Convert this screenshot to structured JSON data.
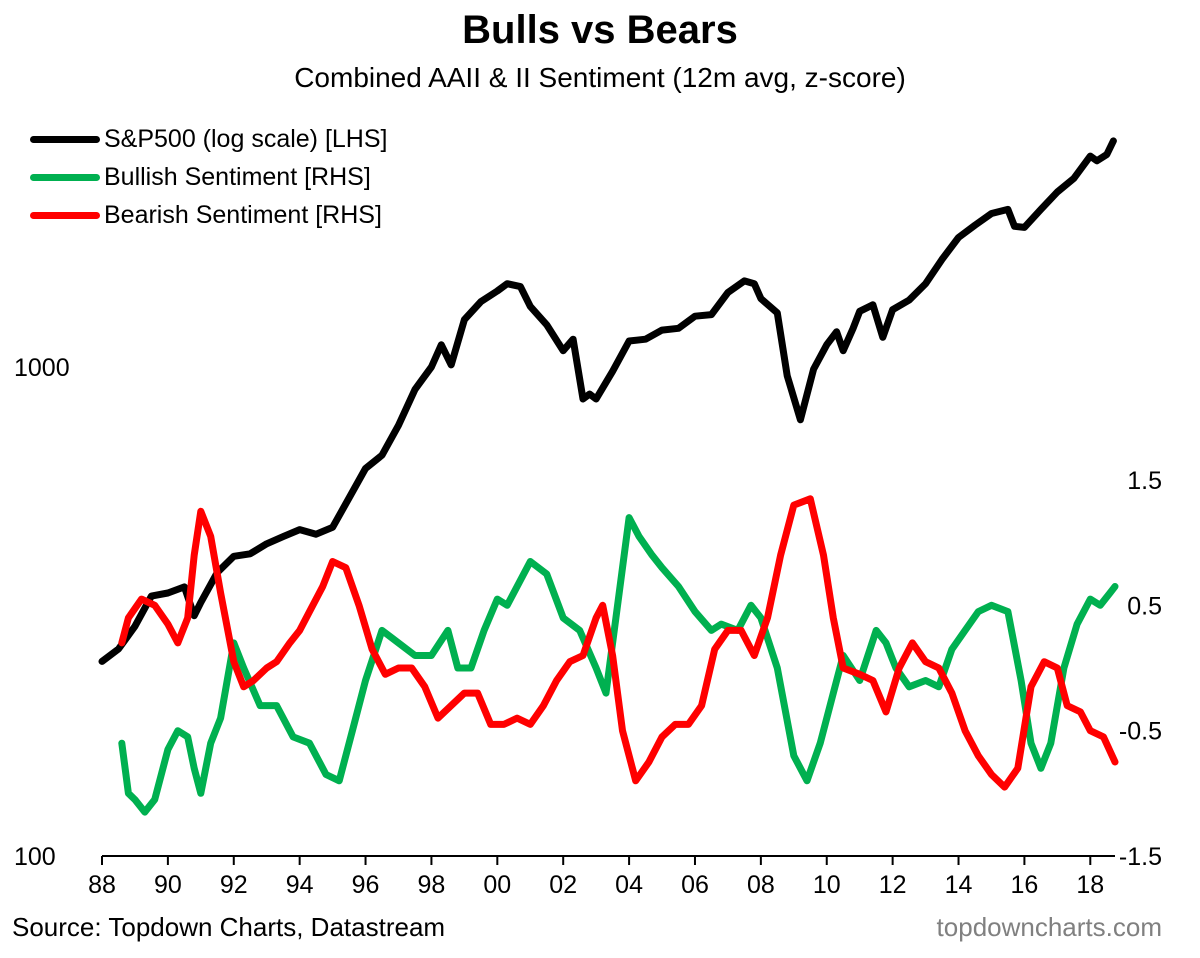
{
  "header": {
    "title": "Bulls vs Bears",
    "subtitle": "Combined AAII & II Sentiment (12m avg, z-score)"
  },
  "footer": {
    "source": "Source: Topdown Charts, Datastream",
    "watermark": "topdowncharts.com"
  },
  "chart_data": {
    "type": "line",
    "title": "Bulls vs Bears",
    "subtitle": "Combined AAII & II Sentiment (12m avg, z-score)",
    "x_axis": {
      "min": 1988,
      "max": 2018.75,
      "ticks": [
        1988,
        1990,
        1992,
        1994,
        1996,
        1998,
        2000,
        2002,
        2004,
        2006,
        2008,
        2010,
        2012,
        2014,
        2016,
        2018
      ],
      "tick_labels": [
        "88",
        "90",
        "92",
        "94",
        "96",
        "98",
        "00",
        "02",
        "04",
        "06",
        "08",
        "10",
        "12",
        "14",
        "16",
        "18"
      ]
    },
    "y_left": {
      "scale": "log",
      "min": 100,
      "max": 3000,
      "ticks": [
        100,
        1000
      ],
      "tick_labels": [
        "100",
        "1000"
      ]
    },
    "y_right": {
      "scale": "linear",
      "min": -1.5,
      "max": 1.5,
      "ticks": [
        -1.5,
        -0.5,
        0.5,
        1.5
      ],
      "tick_labels": [
        "-1.5",
        "-0.5",
        "0.5",
        "1.5"
      ]
    },
    "grid": false,
    "legend_position": "top-left",
    "series": [
      {
        "name": "S&P500 (log scale) [LHS]",
        "axis": "left",
        "color": "#000000",
        "points": [
          [
            1988.0,
            250
          ],
          [
            1988.5,
            265
          ],
          [
            1989.0,
            295
          ],
          [
            1989.5,
            340
          ],
          [
            1990.0,
            345
          ],
          [
            1990.5,
            355
          ],
          [
            1990.8,
            310
          ],
          [
            1991.0,
            330
          ],
          [
            1991.5,
            380
          ],
          [
            1992.0,
            410
          ],
          [
            1992.5,
            415
          ],
          [
            1993.0,
            435
          ],
          [
            1993.5,
            450
          ],
          [
            1994.0,
            465
          ],
          [
            1994.5,
            455
          ],
          [
            1995.0,
            470
          ],
          [
            1995.5,
            540
          ],
          [
            1996.0,
            620
          ],
          [
            1996.5,
            660
          ],
          [
            1997.0,
            760
          ],
          [
            1997.5,
            900
          ],
          [
            1998.0,
            1000
          ],
          [
            1998.3,
            1110
          ],
          [
            1998.6,
            1010
          ],
          [
            1999.0,
            1250
          ],
          [
            1999.5,
            1360
          ],
          [
            2000.0,
            1430
          ],
          [
            2000.3,
            1480
          ],
          [
            2000.7,
            1460
          ],
          [
            2001.0,
            1330
          ],
          [
            2001.5,
            1220
          ],
          [
            2002.0,
            1080
          ],
          [
            2002.3,
            1140
          ],
          [
            2002.6,
            860
          ],
          [
            2002.8,
            880
          ],
          [
            2003.0,
            860
          ],
          [
            2003.5,
            980
          ],
          [
            2004.0,
            1130
          ],
          [
            2004.5,
            1140
          ],
          [
            2005.0,
            1190
          ],
          [
            2005.5,
            1200
          ],
          [
            2006.0,
            1270
          ],
          [
            2006.5,
            1280
          ],
          [
            2007.0,
            1420
          ],
          [
            2007.5,
            1500
          ],
          [
            2007.8,
            1480
          ],
          [
            2008.0,
            1380
          ],
          [
            2008.5,
            1290
          ],
          [
            2008.8,
            960
          ],
          [
            2009.2,
            780
          ],
          [
            2009.6,
            990
          ],
          [
            2010.0,
            1110
          ],
          [
            2010.3,
            1180
          ],
          [
            2010.5,
            1080
          ],
          [
            2010.8,
            1200
          ],
          [
            2011.0,
            1300
          ],
          [
            2011.4,
            1340
          ],
          [
            2011.7,
            1150
          ],
          [
            2012.0,
            1310
          ],
          [
            2012.5,
            1370
          ],
          [
            2013.0,
            1480
          ],
          [
            2013.5,
            1660
          ],
          [
            2014.0,
            1840
          ],
          [
            2014.5,
            1950
          ],
          [
            2015.0,
            2060
          ],
          [
            2015.5,
            2100
          ],
          [
            2015.7,
            1940
          ],
          [
            2016.0,
            1930
          ],
          [
            2016.5,
            2100
          ],
          [
            2017.0,
            2280
          ],
          [
            2017.5,
            2430
          ],
          [
            2018.0,
            2700
          ],
          [
            2018.2,
            2640
          ],
          [
            2018.5,
            2720
          ],
          [
            2018.7,
            2900
          ]
        ]
      },
      {
        "name": "Bullish Sentiment [RHS]",
        "axis": "right",
        "color": "#00b050",
        "points": [
          [
            1988.6,
            -0.6
          ],
          [
            1988.8,
            -1.0
          ],
          [
            1989.0,
            -1.05
          ],
          [
            1989.3,
            -1.15
          ],
          [
            1989.6,
            -1.05
          ],
          [
            1990.0,
            -0.65
          ],
          [
            1990.3,
            -0.5
          ],
          [
            1990.6,
            -0.55
          ],
          [
            1990.8,
            -0.8
          ],
          [
            1991.0,
            -1.0
          ],
          [
            1991.3,
            -0.6
          ],
          [
            1991.6,
            -0.4
          ],
          [
            1992.0,
            0.2
          ],
          [
            1992.3,
            0.0
          ],
          [
            1992.8,
            -0.3
          ],
          [
            1993.3,
            -0.3
          ],
          [
            1993.8,
            -0.55
          ],
          [
            1994.3,
            -0.6
          ],
          [
            1994.8,
            -0.85
          ],
          [
            1995.2,
            -0.9
          ],
          [
            1995.6,
            -0.5
          ],
          [
            1996.0,
            -0.1
          ],
          [
            1996.5,
            0.3
          ],
          [
            1997.0,
            0.2
          ],
          [
            1997.5,
            0.1
          ],
          [
            1998.0,
            0.1
          ],
          [
            1998.5,
            0.3
          ],
          [
            1998.8,
            0.0
          ],
          [
            1999.2,
            0.0
          ],
          [
            1999.6,
            0.3
          ],
          [
            2000.0,
            0.55
          ],
          [
            2000.3,
            0.5
          ],
          [
            2000.7,
            0.7
          ],
          [
            2001.0,
            0.85
          ],
          [
            2001.5,
            0.75
          ],
          [
            2002.0,
            0.4
          ],
          [
            2002.5,
            0.3
          ],
          [
            2003.0,
            0.0
          ],
          [
            2003.3,
            -0.2
          ],
          [
            2003.6,
            0.4
          ],
          [
            2004.0,
            1.2
          ],
          [
            2004.3,
            1.05
          ],
          [
            2004.7,
            0.9
          ],
          [
            2005.0,
            0.8
          ],
          [
            2005.5,
            0.65
          ],
          [
            2006.0,
            0.45
          ],
          [
            2006.5,
            0.3
          ],
          [
            2006.8,
            0.35
          ],
          [
            2007.3,
            0.3
          ],
          [
            2007.7,
            0.5
          ],
          [
            2008.0,
            0.4
          ],
          [
            2008.5,
            0.0
          ],
          [
            2009.0,
            -0.7
          ],
          [
            2009.4,
            -0.9
          ],
          [
            2009.8,
            -0.6
          ],
          [
            2010.2,
            -0.2
          ],
          [
            2010.5,
            0.1
          ],
          [
            2011.0,
            -0.1
          ],
          [
            2011.5,
            0.3
          ],
          [
            2011.8,
            0.2
          ],
          [
            2012.1,
            0.0
          ],
          [
            2012.5,
            -0.15
          ],
          [
            2013.0,
            -0.1
          ],
          [
            2013.4,
            -0.15
          ],
          [
            2013.8,
            0.15
          ],
          [
            2014.2,
            0.3
          ],
          [
            2014.6,
            0.45
          ],
          [
            2015.0,
            0.5
          ],
          [
            2015.5,
            0.45
          ],
          [
            2015.9,
            -0.1
          ],
          [
            2016.2,
            -0.6
          ],
          [
            2016.5,
            -0.8
          ],
          [
            2016.8,
            -0.6
          ],
          [
            2017.2,
            0.0
          ],
          [
            2017.6,
            0.35
          ],
          [
            2018.0,
            0.55
          ],
          [
            2018.3,
            0.5
          ],
          [
            2018.6,
            0.6
          ],
          [
            2018.75,
            0.65
          ]
        ]
      },
      {
        "name": "Bearish Sentiment [RHS]",
        "axis": "right",
        "color": "#ff0000",
        "points": [
          [
            1988.6,
            0.2
          ],
          [
            1988.8,
            0.4
          ],
          [
            1989.2,
            0.55
          ],
          [
            1989.6,
            0.5
          ],
          [
            1990.0,
            0.35
          ],
          [
            1990.3,
            0.2
          ],
          [
            1990.6,
            0.4
          ],
          [
            1990.8,
            0.9
          ],
          [
            1991.0,
            1.25
          ],
          [
            1991.3,
            1.05
          ],
          [
            1991.6,
            0.6
          ],
          [
            1992.0,
            0.05
          ],
          [
            1992.3,
            -0.15
          ],
          [
            1992.6,
            -0.1
          ],
          [
            1993.0,
            0.0
          ],
          [
            1993.3,
            0.05
          ],
          [
            1993.7,
            0.2
          ],
          [
            1994.0,
            0.3
          ],
          [
            1994.3,
            0.45
          ],
          [
            1994.7,
            0.65
          ],
          [
            1995.0,
            0.85
          ],
          [
            1995.4,
            0.8
          ],
          [
            1995.8,
            0.5
          ],
          [
            1996.2,
            0.15
          ],
          [
            1996.6,
            -0.05
          ],
          [
            1997.0,
            0.0
          ],
          [
            1997.4,
            0.0
          ],
          [
            1997.8,
            -0.15
          ],
          [
            1998.2,
            -0.4
          ],
          [
            1998.6,
            -0.3
          ],
          [
            1999.0,
            -0.2
          ],
          [
            1999.4,
            -0.2
          ],
          [
            1999.8,
            -0.45
          ],
          [
            2000.2,
            -0.45
          ],
          [
            2000.6,
            -0.4
          ],
          [
            2001.0,
            -0.45
          ],
          [
            2001.4,
            -0.3
          ],
          [
            2001.8,
            -0.1
          ],
          [
            2002.2,
            0.05
          ],
          [
            2002.6,
            0.1
          ],
          [
            2003.0,
            0.4
          ],
          [
            2003.2,
            0.5
          ],
          [
            2003.5,
            0.1
          ],
          [
            2003.8,
            -0.5
          ],
          [
            2004.2,
            -0.9
          ],
          [
            2004.6,
            -0.75
          ],
          [
            2005.0,
            -0.55
          ],
          [
            2005.4,
            -0.45
          ],
          [
            2005.8,
            -0.45
          ],
          [
            2006.2,
            -0.3
          ],
          [
            2006.6,
            0.15
          ],
          [
            2007.0,
            0.3
          ],
          [
            2007.4,
            0.3
          ],
          [
            2007.8,
            0.1
          ],
          [
            2008.2,
            0.4
          ],
          [
            2008.6,
            0.9
          ],
          [
            2009.0,
            1.3
          ],
          [
            2009.5,
            1.35
          ],
          [
            2009.9,
            0.9
          ],
          [
            2010.2,
            0.4
          ],
          [
            2010.5,
            0.0
          ],
          [
            2011.0,
            -0.05
          ],
          [
            2011.4,
            -0.1
          ],
          [
            2011.8,
            -0.35
          ],
          [
            2012.2,
            0.0
          ],
          [
            2012.6,
            0.2
          ],
          [
            2013.0,
            0.05
          ],
          [
            2013.4,
            0.0
          ],
          [
            2013.8,
            -0.2
          ],
          [
            2014.2,
            -0.5
          ],
          [
            2014.6,
            -0.7
          ],
          [
            2015.0,
            -0.85
          ],
          [
            2015.4,
            -0.95
          ],
          [
            2015.8,
            -0.8
          ],
          [
            2016.2,
            -0.15
          ],
          [
            2016.6,
            0.05
          ],
          [
            2017.0,
            0.0
          ],
          [
            2017.3,
            -0.3
          ],
          [
            2017.7,
            -0.35
          ],
          [
            2018.0,
            -0.5
          ],
          [
            2018.4,
            -0.55
          ],
          [
            2018.75,
            -0.75
          ]
        ]
      }
    ]
  }
}
